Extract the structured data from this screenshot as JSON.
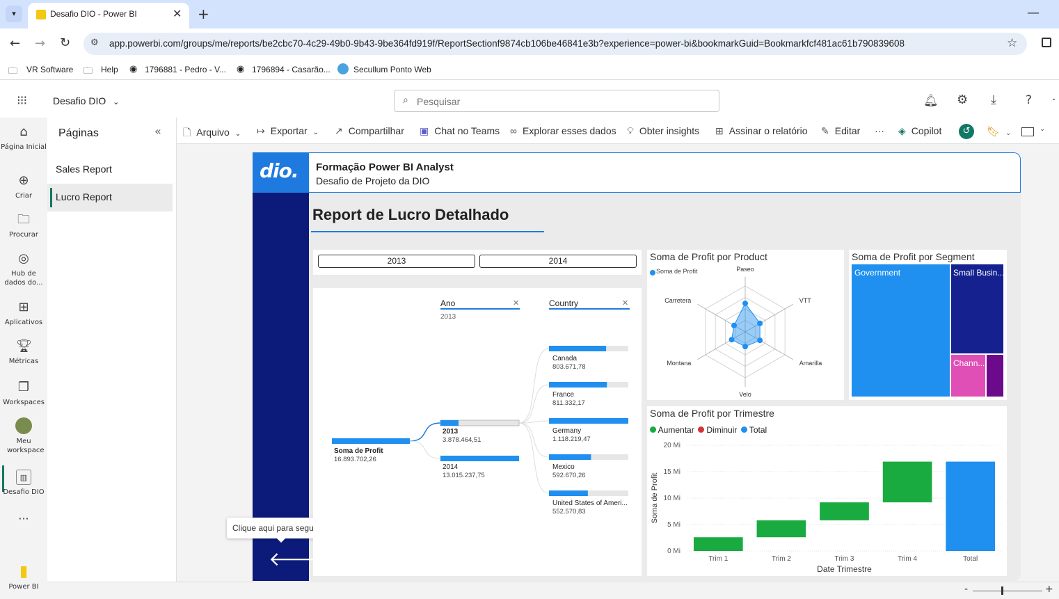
{
  "browser": {
    "tab_title": "Desafio DIO - Power BI",
    "url": "app.powerbi.com/groups/me/reports/be2cbc70-4c29-49b0-9b43-9be364fd919f/ReportSectionf9874cb106be46841e3b?experience=power-bi&bookmarkGuid=Bookmarkfcf481ac61b790839608",
    "bookmarks": [
      "VR Software",
      "Help",
      "1796881 - Pedro - V...",
      "1796894 - Casarão...",
      "Secullum Ponto Web"
    ]
  },
  "app": {
    "workspace_title": "Desafio DIO",
    "search_placeholder": "Pesquisar"
  },
  "leftnav": [
    {
      "label": "Página Inicial",
      "icon": "home-icon"
    },
    {
      "label": "Criar",
      "icon": "plus-circle-icon"
    },
    {
      "label": "Procurar",
      "icon": "folder-icon"
    },
    {
      "label": "Hub de dados do...",
      "icon": "data-hub-icon"
    },
    {
      "label": "Aplicativos",
      "icon": "apps-icon"
    },
    {
      "label": "Métricas",
      "icon": "trophy-icon"
    },
    {
      "label": "Workspaces",
      "icon": "workspaces-icon"
    },
    {
      "label": "Meu workspace",
      "icon": "avatar-icon"
    },
    {
      "label": "Desafio DIO",
      "icon": "report-icon"
    },
    {
      "label": "Power BI",
      "icon": "powerbi-logo-icon"
    }
  ],
  "pages": {
    "title": "Páginas",
    "items": [
      "Sales Report",
      "Lucro Report"
    ],
    "active": "Lucro Report"
  },
  "toolbar": {
    "arquivo": "Arquivo",
    "exportar": "Exportar",
    "compartilhar": "Compartilhar",
    "chat": "Chat no Teams",
    "explorar": "Explorar esses dados",
    "insights": "Obter insights",
    "assinar": "Assinar o relatório",
    "editar": "Editar",
    "more": "···",
    "copilot": "Copilot"
  },
  "report": {
    "logo_text": "dio.",
    "header_title": "Formação Power BI Analyst",
    "header_subtitle": "Desafio de Projeto da DIO",
    "page_title": "Report de Lucro Detalhado",
    "slicer_buttons": [
      "2013",
      "2014"
    ],
    "tooltip": "Clique aqui para seguir link",
    "accent": "#1f7ae0",
    "navy": "#0c1a7a"
  },
  "decomp_tree": {
    "filters": [
      {
        "label": "Ano",
        "value": "2013"
      },
      {
        "label": "Country",
        "value": ""
      }
    ],
    "root": {
      "label": "Soma de Profit",
      "value": "16.893.702,26"
    },
    "years": [
      {
        "label": "2013",
        "value": "3.878.464,51",
        "fill": 0.23,
        "selected": true
      },
      {
        "label": "2014",
        "value": "13.015.237,75",
        "fill": 1.0,
        "selected": false
      }
    ],
    "countries": [
      {
        "label": "Canada",
        "value": "803.671,78",
        "fill": 0.72
      },
      {
        "label": "France",
        "value": "811.332,17",
        "fill": 0.73
      },
      {
        "label": "Germany",
        "value": "1.118.219,47",
        "fill": 1.0
      },
      {
        "label": "Mexico",
        "value": "592.670,26",
        "fill": 0.53
      },
      {
        "label": "United States of Ameri...",
        "value": "552.570,83",
        "fill": 0.49
      }
    ]
  },
  "radar": {
    "title": "Soma de Profit por Product",
    "legend": "Soma de Profit",
    "axes": [
      "Paseo",
      "VTT",
      "Amarilla",
      "Velo",
      "Montana",
      "Carretera"
    ],
    "values": [
      0.62,
      0.37,
      0.37,
      0.32,
      0.34,
      0.28
    ]
  },
  "treemap": {
    "title": "Soma de Profit por Segment",
    "items": [
      {
        "label": "Government",
        "color": "#1f8ff0"
      },
      {
        "label": "Small Busin...",
        "color": "#14218f"
      },
      {
        "label": "Chann...",
        "color": "#e04fb6"
      },
      {
        "label": "",
        "color": "#6b0a8a"
      }
    ]
  },
  "chart_data": {
    "type": "waterfall",
    "title": "Soma de Profit por Trimestre",
    "xlabel": "Date Trimestre",
    "ylabel": "Soma de Profit",
    "legend": [
      "Aumentar",
      "Diminuir",
      "Total"
    ],
    "legend_colors": [
      "#1aab40",
      "#d13438",
      "#1f8ff0"
    ],
    "categories": [
      "Trim 1",
      "Trim 2",
      "Trim 3",
      "Trim 4",
      "Total"
    ],
    "values": [
      2.6,
      3.2,
      3.4,
      7.7,
      16.9
    ],
    "y_ticks": [
      "0 Mi",
      "5 Mi",
      "10 Mi",
      "15 Mi",
      "20 Mi"
    ],
    "ylim": [
      0,
      20
    ]
  }
}
